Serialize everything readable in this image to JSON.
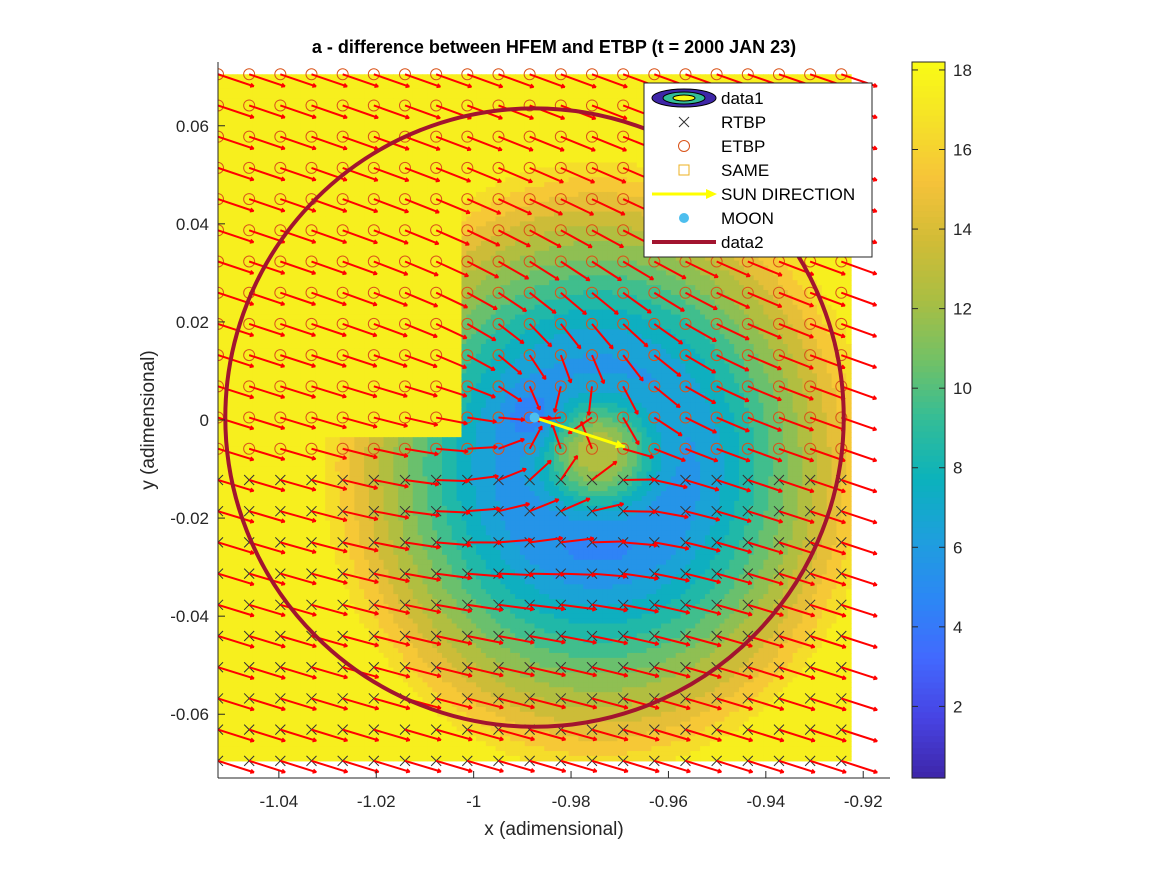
{
  "chart_data": {
    "type": "contour",
    "title": "a - difference between HFEM and ETBP (t = 2000 JAN 23)",
    "xlabel": "x (adimensional)",
    "ylabel": "y (adimensional)",
    "xlim": [
      -1.0525,
      -0.9145
    ],
    "ylim": [
      -0.073,
      0.073
    ],
    "x_ticks": [
      {
        "value": -1.04,
        "label": "-1.04"
      },
      {
        "value": -1.02,
        "label": "-1.02"
      },
      {
        "value": -1.0,
        "label": "-1"
      },
      {
        "value": -0.98,
        "label": "-0.98"
      },
      {
        "value": -0.96,
        "label": "-0.96"
      },
      {
        "value": -0.94,
        "label": "-0.94"
      },
      {
        "value": -0.92,
        "label": "-0.92"
      }
    ],
    "y_ticks": [
      {
        "value": 0.06,
        "label": "0.06"
      },
      {
        "value": 0.04,
        "label": "0.04"
      },
      {
        "value": 0.02,
        "label": "0.02"
      },
      {
        "value": 0.0,
        "label": "0"
      },
      {
        "value": -0.02,
        "label": "-0.02"
      },
      {
        "value": -0.04,
        "label": "-0.04"
      },
      {
        "value": -0.06,
        "label": "-0.06"
      }
    ],
    "colorbar": {
      "min": 0.2,
      "max": 18.2,
      "ticks": [
        {
          "value": 2,
          "label": "2"
        },
        {
          "value": 4,
          "label": "4"
        },
        {
          "value": 6,
          "label": "6"
        },
        {
          "value": 8,
          "label": "8"
        },
        {
          "value": 10,
          "label": "10"
        },
        {
          "value": 12,
          "label": "12"
        },
        {
          "value": 14,
          "label": "14"
        },
        {
          "value": 16,
          "label": "16"
        },
        {
          "value": 18,
          "label": "18"
        }
      ],
      "colormap": [
        "#3e26a8",
        "#4743e3",
        "#4269fe",
        "#2c87f5",
        "#1e9fdd",
        "#0bb2bc",
        "#33bd97",
        "#72c166",
        "#a9be43",
        "#d1bc36",
        "#f6c23a",
        "#f5e128",
        "#f9fb15"
      ]
    },
    "contour_field": {
      "grid_x": [
        -1.0525,
        -0.9225
      ],
      "grid_y": [
        -0.0695,
        0.0705
      ],
      "center_min": [
        -0.9745,
        -0.0095
      ],
      "inner_hump": [
        -0.9745,
        -0.0075
      ],
      "source_point": [
        -0.9875,
        0.0005
      ],
      "levels": [
        1,
        2,
        3,
        4,
        5,
        6,
        7,
        8,
        9,
        10,
        11,
        12,
        13,
        14,
        15,
        16,
        17
      ]
    },
    "grid": {
      "x_start": -1.0525,
      "x_end": -0.9245,
      "nx": 21,
      "y_start": 0.0705,
      "y_end": -0.0695,
      "ny": 23
    },
    "rtbp_region": "y < -0.008",
    "sun_direction": {
      "angle_deg": -18
    },
    "moon": {
      "x": -0.9875,
      "y": 0.0005
    },
    "data2_circle": {
      "center": [
        -0.9875,
        0.0005
      ],
      "radius": 0.0635,
      "color": "#a2142f"
    },
    "legend": {
      "position": "top-right",
      "entries": [
        {
          "label": "data1",
          "symbol": "contour"
        },
        {
          "label": "RTBP",
          "symbol": "x-marker"
        },
        {
          "label": "ETBP",
          "symbol": "circle-marker"
        },
        {
          "label": "SAME",
          "symbol": "square-marker"
        },
        {
          "label": "SUN DIRECTION",
          "symbol": "yellow-arrow"
        },
        {
          "label": "MOON",
          "symbol": "filled-dot"
        },
        {
          "label": "data2",
          "symbol": "line"
        }
      ]
    }
  }
}
